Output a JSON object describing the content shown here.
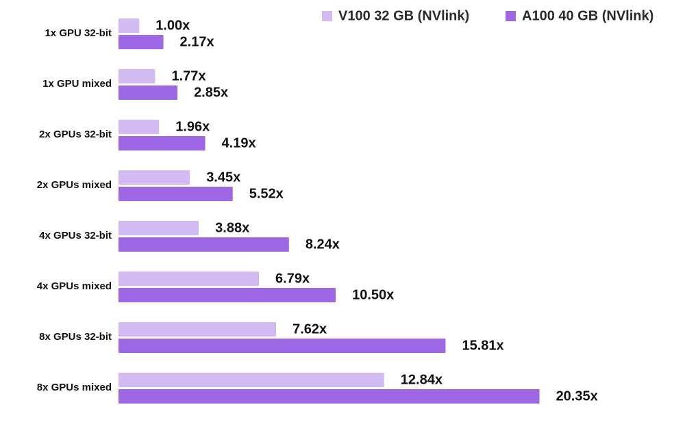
{
  "chart_data": {
    "type": "bar",
    "orientation": "horizontal",
    "legend": "upper right",
    "categories": [
      "1x GPU 32-bit",
      "1x GPU mixed",
      "2x GPUs 32-bit",
      "2x GPUs mixed",
      "4x GPUs 32-bit",
      "4x GPUs mixed",
      "8x GPUs 32-bit",
      "8x GPUs mixed"
    ],
    "series": [
      {
        "name": "V100 32 GB (NVlink)",
        "color": "#d2bbf3",
        "values": [
          1.0,
          1.77,
          1.96,
          3.45,
          3.88,
          6.79,
          7.62,
          12.84
        ],
        "value_labels": [
          "1.00x",
          "1.77x",
          "1.96x",
          "3.45x",
          "3.88x",
          "6.79x",
          "7.62x",
          "12.84x"
        ]
      },
      {
        "name": "A100 40 GB (NVlink)",
        "color": "#9d67e6",
        "values": [
          2.17,
          2.85,
          4.19,
          5.52,
          8.24,
          10.5,
          15.81,
          20.35
        ],
        "value_labels": [
          "2.17x",
          "2.85x",
          "4.19x",
          "5.52x",
          "8.24x",
          "10.50x",
          "15.81x",
          "20.35x"
        ]
      }
    ]
  }
}
